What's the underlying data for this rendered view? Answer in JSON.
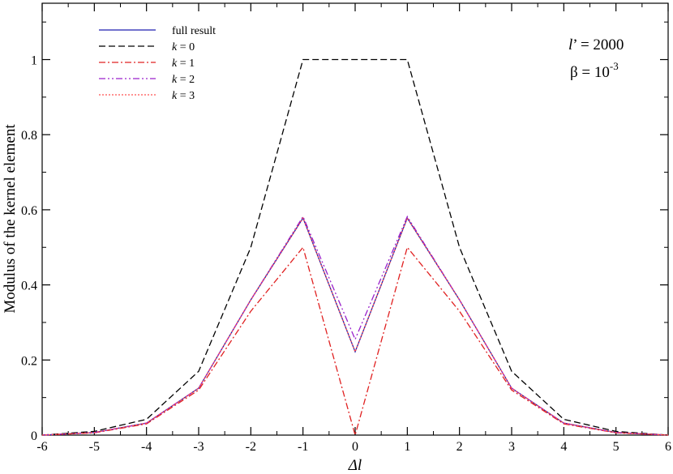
{
  "chart_data": {
    "type": "line",
    "title": "",
    "xlabel": "Δl",
    "ylabel": "Modulus of the kernel element",
    "xlim": [
      -6,
      6
    ],
    "ylim": [
      0,
      1.15
    ],
    "xticks": [
      -6,
      -5,
      -4,
      -3,
      -2,
      -1,
      0,
      1,
      2,
      3,
      4,
      5,
      6
    ],
    "xtick_labels": [
      "-6",
      "-5",
      "-4",
      "-3",
      "-2",
      "-1",
      "0",
      "1",
      "2",
      "3",
      "4",
      "5",
      "6"
    ],
    "yticks": [
      0,
      0.2,
      0.4,
      0.6,
      0.8,
      1
    ],
    "ytick_labels": [
      "0",
      "0.2",
      "0.4",
      "0.6",
      "0.8",
      "1"
    ],
    "grid": false,
    "legend_position": "top-left",
    "annotations": {
      "lprime": {
        "symbol": "l",
        "prime": "’",
        "rest": " = 2000"
      },
      "beta": {
        "lhs": "β = 10",
        "exponent": "-3"
      }
    },
    "x": [
      -6,
      -5,
      -4,
      -3,
      -2,
      -1,
      0,
      1,
      2,
      3,
      4,
      5,
      6
    ],
    "series": [
      {
        "name": "full result",
        "color": "#1f1fb0",
        "dash": "solid",
        "values": [
          0.0,
          0.007,
          0.032,
          0.125,
          0.36,
          0.578,
          0.222,
          0.578,
          0.36,
          0.125,
          0.032,
          0.007,
          0.0
        ]
      },
      {
        "name": "k = 0",
        "color": "#000000",
        "dash": "dashed",
        "values": [
          0.0,
          0.01,
          0.042,
          0.17,
          0.5,
          1.0,
          1.0,
          1.0,
          0.5,
          0.17,
          0.042,
          0.01,
          0.0
        ]
      },
      {
        "name": "k = 1",
        "color": "#e02020",
        "dash": "dashdot",
        "values": [
          0.0,
          0.006,
          0.03,
          0.12,
          0.33,
          0.5,
          0.0,
          0.5,
          0.33,
          0.12,
          0.03,
          0.006,
          0.0
        ]
      },
      {
        "name": "k = 2",
        "color": "#9a22cc",
        "dash": "dashdotdot",
        "values": [
          0.0,
          0.007,
          0.032,
          0.125,
          0.36,
          0.582,
          0.255,
          0.582,
          0.36,
          0.125,
          0.032,
          0.007,
          0.0
        ]
      },
      {
        "name": "k = 3",
        "color": "#ff5050",
        "dash": "dotted",
        "values": [
          0.0,
          0.007,
          0.032,
          0.125,
          0.36,
          0.578,
          0.222,
          0.578,
          0.36,
          0.125,
          0.032,
          0.007,
          0.0
        ]
      }
    ]
  }
}
